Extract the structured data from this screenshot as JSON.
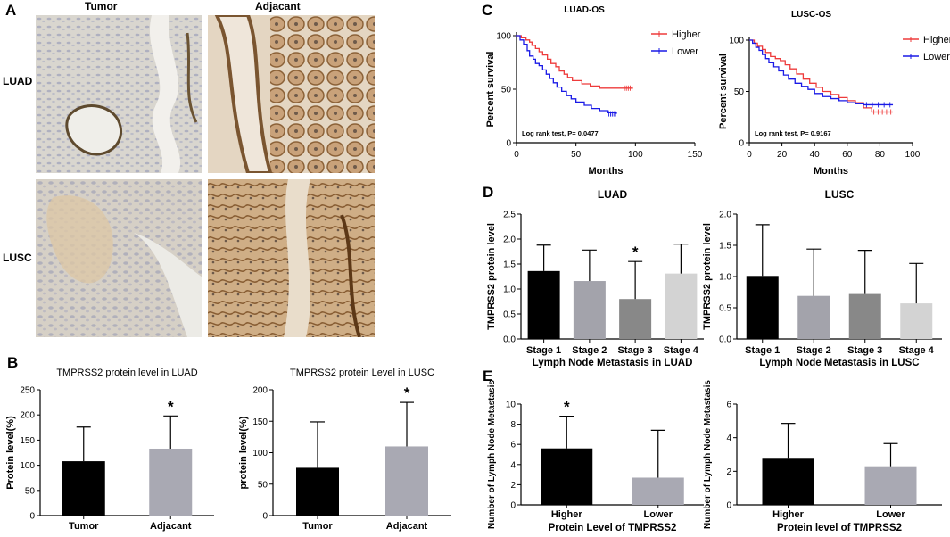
{
  "panels": {
    "A": {
      "letter": "A",
      "col_headers": [
        "Tumor",
        "Adjacant"
      ],
      "row_headers": [
        "LUAD",
        "LUSC"
      ]
    },
    "B": {
      "letter": "B"
    },
    "C": {
      "letter": "C"
    },
    "D": {
      "letter": "D"
    },
    "E": {
      "letter": "E"
    }
  },
  "colors": {
    "higher": "#ee3b3b",
    "lower": "#1a1ae6",
    "black_bar": "#000000",
    "gray_bar": "#a9a9b3",
    "stage2": "#a3a3ab",
    "stage3": "#888888",
    "stage4": "#d3d3d3"
  },
  "chart_data": [
    {
      "id": "B1",
      "type": "bar",
      "title": "TMPRSS2 protein level in LUAD",
      "ylabel": "Protein level(%)",
      "xlabel": "",
      "categories": [
        "Tumor",
        "Adjacant"
      ],
      "values": [
        108,
        133
      ],
      "errors": [
        68,
        65
      ],
      "ylim": [
        0,
        250
      ],
      "yticks": [
        0,
        50,
        100,
        150,
        200,
        250
      ],
      "bar_colors": [
        "#000000",
        "#a9a9b3"
      ],
      "significance": [
        "",
        "*"
      ]
    },
    {
      "id": "B2",
      "type": "bar",
      "title": "TMPRSS2 protein Level in LUSC",
      "ylabel": "protein level(%)",
      "xlabel": "",
      "categories": [
        "Tumor",
        "Adjacant"
      ],
      "values": [
        76,
        110
      ],
      "errors": [
        73,
        70
      ],
      "ylim": [
        0,
        200
      ],
      "yticks": [
        0,
        50,
        100,
        150,
        200
      ],
      "bar_colors": [
        "#000000",
        "#a9a9b3"
      ],
      "significance": [
        "",
        "*"
      ]
    },
    {
      "id": "C1",
      "type": "line",
      "title": "LUAD-OS",
      "xlabel": "Months",
      "ylabel": "Percent survival",
      "xlim": [
        0,
        150
      ],
      "ylim": [
        0,
        100
      ],
      "xticks": [
        0,
        50,
        100,
        150
      ],
      "yticks": [
        0,
        50,
        100
      ],
      "annotation": "Log rank test, P= 0.0477",
      "legend": [
        "Higher",
        "Lower"
      ],
      "series": [
        {
          "name": "Higher",
          "color": "#ee3b3b",
          "x": [
            0,
            4,
            8,
            11,
            13,
            16,
            19,
            22,
            26,
            29,
            33,
            36,
            40,
            43,
            47,
            55,
            62,
            70,
            80,
            90,
            98
          ],
          "y": [
            100,
            98,
            96,
            94,
            91,
            88,
            85,
            82,
            78,
            74,
            71,
            67,
            64,
            61,
            58,
            55,
            53,
            51,
            51,
            51,
            51
          ]
        },
        {
          "name": "Lower",
          "color": "#1a1ae6",
          "x": [
            0,
            3,
            6,
            9,
            11,
            14,
            16,
            19,
            22,
            25,
            28,
            31,
            34,
            38,
            42,
            46,
            50,
            57,
            63,
            70,
            77,
            84
          ],
          "y": [
            100,
            96,
            92,
            86,
            81,
            78,
            74,
            72,
            68,
            64,
            60,
            56,
            52,
            48,
            44,
            41,
            38,
            35,
            32,
            30,
            28,
            27
          ]
        }
      ]
    },
    {
      "id": "C2",
      "type": "line",
      "title": "LUSC-OS",
      "xlabel": "Months",
      "ylabel": "Percent survival",
      "xlim": [
        0,
        100
      ],
      "ylim": [
        0,
        100
      ],
      "xticks": [
        0,
        20,
        40,
        60,
        80,
        100
      ],
      "yticks": [
        0,
        50,
        100
      ],
      "annotation": "Log rank test, P= 0.9167",
      "legend": [
        "Higher",
        "Lower"
      ],
      "series": [
        {
          "name": "Higher",
          "color": "#ee3b3b",
          "x": [
            0,
            3,
            5,
            8,
            10,
            13,
            16,
            19,
            22,
            25,
            29,
            33,
            37,
            41,
            45,
            50,
            55,
            60,
            65,
            70,
            75,
            88
          ],
          "y": [
            100,
            97,
            94,
            91,
            88,
            84,
            82,
            80,
            76,
            72,
            67,
            62,
            58,
            54,
            50,
            47,
            44,
            41,
            39,
            34,
            30,
            30
          ]
        },
        {
          "name": "Lower",
          "color": "#1a1ae6",
          "x": [
            0,
            2,
            4,
            6,
            8,
            10,
            12,
            15,
            18,
            21,
            24,
            28,
            32,
            36,
            40,
            45,
            50,
            55,
            60,
            65,
            70,
            88
          ],
          "y": [
            100,
            97,
            93,
            90,
            86,
            82,
            78,
            74,
            70,
            66,
            62,
            58,
            55,
            52,
            48,
            45,
            43,
            41,
            39,
            38,
            37,
            37
          ]
        }
      ]
    },
    {
      "id": "D1",
      "type": "bar",
      "title": "LUAD",
      "ylabel": "TMPRSS2 protein level",
      "xlabel": "Lymph Node Metastasis in LUAD",
      "categories": [
        "Stage 1",
        "Stage 2",
        "Stage 3",
        "Stage 4"
      ],
      "values": [
        1.36,
        1.16,
        0.8,
        1.31
      ],
      "errors": [
        0.52,
        0.62,
        0.75,
        0.59
      ],
      "ylim": [
        0,
        2.5
      ],
      "yticks": [
        0.0,
        0.5,
        1.0,
        1.5,
        2.0,
        2.5
      ],
      "bar_colors": [
        "#000000",
        "#a3a3ab",
        "#888888",
        "#d3d3d3"
      ],
      "significance": [
        "",
        "",
        "*",
        ""
      ]
    },
    {
      "id": "D2",
      "type": "bar",
      "title": "LUSC",
      "ylabel": "TMPRSS2 protein level",
      "xlabel": "Lymph Node Metastasis in LUSC",
      "categories": [
        "Stage 1",
        "Stage 2",
        "Stage 3",
        "Stage 4"
      ],
      "values": [
        1.01,
        0.69,
        0.72,
        0.57
      ],
      "errors": [
        0.82,
        0.75,
        0.7,
        0.64
      ],
      "ylim": [
        0,
        2.0
      ],
      "yticks": [
        0.0,
        0.5,
        1.0,
        1.5,
        2.0
      ],
      "bar_colors": [
        "#000000",
        "#a3a3ab",
        "#888888",
        "#d3d3d3"
      ],
      "significance": [
        "",
        "",
        "",
        ""
      ]
    },
    {
      "id": "E1",
      "type": "bar",
      "title": "",
      "ylabel": "Number of Lymph Node Metastasis",
      "xlabel": "Protein Level of TMPRSS2",
      "categories": [
        "Higher",
        "Lower"
      ],
      "values": [
        5.6,
        2.7
      ],
      "errors": [
        3.2,
        4.7
      ],
      "ylim": [
        0,
        10
      ],
      "yticks": [
        0,
        2,
        4,
        6,
        8,
        10
      ],
      "bar_colors": [
        "#000000",
        "#a9a9b3"
      ],
      "significance": [
        "*",
        ""
      ]
    },
    {
      "id": "E2",
      "type": "bar",
      "title": "",
      "ylabel": "Number of Lymph Node Metastasis",
      "xlabel": "Protein level of TMPRSS2",
      "categories": [
        "Higher",
        "Lower"
      ],
      "values": [
        2.8,
        2.3
      ],
      "errors": [
        2.05,
        1.35
      ],
      "ylim": [
        0,
        6
      ],
      "yticks": [
        0,
        2,
        4,
        6
      ],
      "bar_colors": [
        "#000000",
        "#a9a9b3"
      ],
      "significance": [
        "",
        ""
      ]
    }
  ]
}
